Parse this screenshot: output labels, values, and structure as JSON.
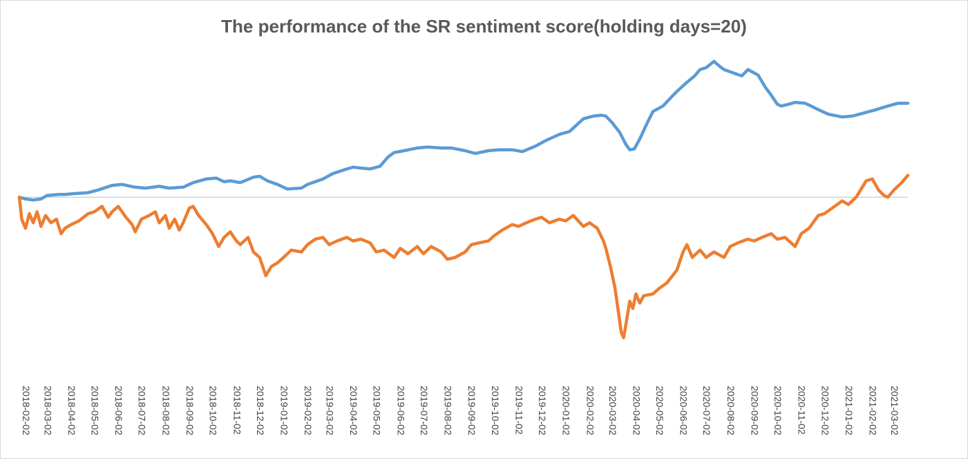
{
  "chart_data": {
    "type": "line",
    "title": "The performance of the SR sentiment score(holding days=20)",
    "xlabel": "",
    "ylabel": "",
    "x_tick_labels": [
      "2018-02-02",
      "2018-03-02",
      "2018-04-02",
      "2018-05-02",
      "2018-06-02",
      "2018-07-02",
      "2018-08-02",
      "2018-09-02",
      "2018-10-02",
      "2018-11-02",
      "2018-12-02",
      "2019-01-02",
      "2019-02-02",
      "2019-03-02",
      "2019-04-02",
      "2019-05-02",
      "2019-06-02",
      "2019-07-02",
      "2019-08-02",
      "2019-09-02",
      "2019-10-02",
      "2019-11-02",
      "2019-12-02",
      "2020-01-02",
      "2020-02-02",
      "2020-03-02",
      "2020-04-02",
      "2020-05-02",
      "2020-06-02",
      "2020-07-02",
      "2020-08-02",
      "2020-09-02",
      "2020-10-02",
      "2020-11-02",
      "2020-12-02",
      "2021-01-02",
      "2021-02-02",
      "2021-03-02"
    ],
    "x_range": [
      "2018-02-02",
      "2021-03-28"
    ],
    "ylim": [
      -0.95,
      0.85
    ],
    "grid": false,
    "legend": "none",
    "baseline": 0,
    "series": [
      {
        "color": "#5b9bd5",
        "points": [
          [
            "2018-02-02",
            0.0
          ],
          [
            "2018-02-10",
            -0.01
          ],
          [
            "2018-02-20",
            -0.015
          ],
          [
            "2018-03-02",
            -0.01
          ],
          [
            "2018-03-10",
            0.01
          ],
          [
            "2018-03-25",
            0.015
          ],
          [
            "2018-04-02",
            0.015
          ],
          [
            "2018-04-15",
            0.02
          ],
          [
            "2018-05-02",
            0.025
          ],
          [
            "2018-05-15",
            0.04
          ],
          [
            "2018-06-02",
            0.065
          ],
          [
            "2018-06-15",
            0.07
          ],
          [
            "2018-07-02",
            0.055
          ],
          [
            "2018-07-15",
            0.05
          ],
          [
            "2018-08-02",
            0.06
          ],
          [
            "2018-08-15",
            0.05
          ],
          [
            "2018-09-02",
            0.055
          ],
          [
            "2018-09-15",
            0.08
          ],
          [
            "2018-10-02",
            0.1
          ],
          [
            "2018-10-15",
            0.105
          ],
          [
            "2018-10-25",
            0.085
          ],
          [
            "2018-11-02",
            0.09
          ],
          [
            "2018-11-15",
            0.08
          ],
          [
            "2018-12-02",
            0.11
          ],
          [
            "2018-12-10",
            0.115
          ],
          [
            "2018-12-20",
            0.09
          ],
          [
            "2019-01-02",
            0.07
          ],
          [
            "2019-01-15",
            0.045
          ],
          [
            "2019-02-02",
            0.05
          ],
          [
            "2019-02-10",
            0.07
          ],
          [
            "2019-03-02",
            0.1
          ],
          [
            "2019-03-15",
            0.13
          ],
          [
            "2019-04-02",
            0.155
          ],
          [
            "2019-04-10",
            0.165
          ],
          [
            "2019-04-20",
            0.16
          ],
          [
            "2019-05-02",
            0.155
          ],
          [
            "2019-05-15",
            0.17
          ],
          [
            "2019-05-25",
            0.22
          ],
          [
            "2019-06-02",
            0.245
          ],
          [
            "2019-06-15",
            0.255
          ],
          [
            "2019-07-02",
            0.27
          ],
          [
            "2019-07-15",
            0.275
          ],
          [
            "2019-08-02",
            0.27
          ],
          [
            "2019-08-15",
            0.27
          ],
          [
            "2019-09-02",
            0.255
          ],
          [
            "2019-09-15",
            0.24
          ],
          [
            "2019-10-02",
            0.255
          ],
          [
            "2019-10-15",
            0.26
          ],
          [
            "2019-11-02",
            0.26
          ],
          [
            "2019-11-15",
            0.25
          ],
          [
            "2019-12-02",
            0.28
          ],
          [
            "2019-12-15",
            0.31
          ],
          [
            "2020-01-02",
            0.345
          ],
          [
            "2020-01-15",
            0.36
          ],
          [
            "2020-02-02",
            0.43
          ],
          [
            "2020-02-15",
            0.445
          ],
          [
            "2020-02-25",
            0.45
          ],
          [
            "2020-03-02",
            0.445
          ],
          [
            "2020-03-10",
            0.41
          ],
          [
            "2020-03-20",
            0.355
          ],
          [
            "2020-03-28",
            0.29
          ],
          [
            "2020-04-02",
            0.26
          ],
          [
            "2020-04-08",
            0.265
          ],
          [
            "2020-04-15",
            0.32
          ],
          [
            "2020-04-25",
            0.41
          ],
          [
            "2020-05-02",
            0.47
          ],
          [
            "2020-05-15",
            0.5
          ],
          [
            "2020-05-25",
            0.545
          ],
          [
            "2020-06-02",
            0.58
          ],
          [
            "2020-06-15",
            0.63
          ],
          [
            "2020-06-25",
            0.665
          ],
          [
            "2020-07-02",
            0.7
          ],
          [
            "2020-07-10",
            0.71
          ],
          [
            "2020-07-20",
            0.745
          ],
          [
            "2020-07-28",
            0.715
          ],
          [
            "2020-08-02",
            0.7
          ],
          [
            "2020-08-15",
            0.68
          ],
          [
            "2020-08-25",
            0.665
          ],
          [
            "2020-09-02",
            0.7
          ],
          [
            "2020-09-15",
            0.67
          ],
          [
            "2020-09-25",
            0.6
          ],
          [
            "2020-10-02",
            0.56
          ],
          [
            "2020-10-10",
            0.51
          ],
          [
            "2020-10-15",
            0.5
          ],
          [
            "2020-10-25",
            0.51
          ],
          [
            "2020-11-02",
            0.52
          ],
          [
            "2020-11-15",
            0.515
          ],
          [
            "2020-11-25",
            0.495
          ],
          [
            "2020-12-02",
            0.48
          ],
          [
            "2020-12-15",
            0.455
          ],
          [
            "2021-01-02",
            0.44
          ],
          [
            "2021-01-15",
            0.445
          ],
          [
            "2021-02-02",
            0.465
          ],
          [
            "2021-02-15",
            0.48
          ],
          [
            "2021-03-02",
            0.5
          ],
          [
            "2021-03-15",
            0.515
          ],
          [
            "2021-03-28",
            0.515
          ]
        ]
      },
      {
        "color": "#ed7d31",
        "points": [
          [
            "2018-02-02",
            0.0
          ],
          [
            "2018-02-05",
            -0.12
          ],
          [
            "2018-02-10",
            -0.17
          ],
          [
            "2018-02-15",
            -0.09
          ],
          [
            "2018-02-20",
            -0.14
          ],
          [
            "2018-02-25",
            -0.08
          ],
          [
            "2018-03-02",
            -0.16
          ],
          [
            "2018-03-08",
            -0.1
          ],
          [
            "2018-03-15",
            -0.14
          ],
          [
            "2018-03-22",
            -0.12
          ],
          [
            "2018-03-28",
            -0.2
          ],
          [
            "2018-04-02",
            -0.17
          ],
          [
            "2018-04-10",
            -0.15
          ],
          [
            "2018-04-20",
            -0.13
          ],
          [
            "2018-05-02",
            -0.09
          ],
          [
            "2018-05-10",
            -0.08
          ],
          [
            "2018-05-20",
            -0.05
          ],
          [
            "2018-05-28",
            -0.11
          ],
          [
            "2018-06-02",
            -0.08
          ],
          [
            "2018-06-10",
            -0.05
          ],
          [
            "2018-06-20",
            -0.11
          ],
          [
            "2018-06-28",
            -0.15
          ],
          [
            "2018-07-02",
            -0.19
          ],
          [
            "2018-07-10",
            -0.12
          ],
          [
            "2018-07-20",
            -0.1
          ],
          [
            "2018-07-28",
            -0.08
          ],
          [
            "2018-08-02",
            -0.14
          ],
          [
            "2018-08-10",
            -0.1
          ],
          [
            "2018-08-15",
            -0.17
          ],
          [
            "2018-08-22",
            -0.12
          ],
          [
            "2018-08-28",
            -0.18
          ],
          [
            "2018-09-02",
            -0.14
          ],
          [
            "2018-09-10",
            -0.06
          ],
          [
            "2018-09-15",
            -0.05
          ],
          [
            "2018-09-22",
            -0.1
          ],
          [
            "2018-10-02",
            -0.15
          ],
          [
            "2018-10-10",
            -0.2
          ],
          [
            "2018-10-18",
            -0.27
          ],
          [
            "2018-10-25",
            -0.22
          ],
          [
            "2018-11-02",
            -0.19
          ],
          [
            "2018-11-10",
            -0.24
          ],
          [
            "2018-11-15",
            -0.26
          ],
          [
            "2018-11-25",
            -0.22
          ],
          [
            "2018-12-02",
            -0.3
          ],
          [
            "2018-12-10",
            -0.33
          ],
          [
            "2018-12-18",
            -0.43
          ],
          [
            "2018-12-25",
            -0.38
          ],
          [
            "2019-01-02",
            -0.36
          ],
          [
            "2019-01-10",
            -0.33
          ],
          [
            "2019-01-20",
            -0.29
          ],
          [
            "2019-02-02",
            -0.3
          ],
          [
            "2019-02-10",
            -0.26
          ],
          [
            "2019-02-20",
            -0.23
          ],
          [
            "2019-03-02",
            -0.22
          ],
          [
            "2019-03-10",
            -0.26
          ],
          [
            "2019-03-20",
            -0.24
          ],
          [
            "2019-04-02",
            -0.22
          ],
          [
            "2019-04-10",
            -0.24
          ],
          [
            "2019-04-20",
            -0.23
          ],
          [
            "2019-05-02",
            -0.25
          ],
          [
            "2019-05-10",
            -0.3
          ],
          [
            "2019-05-20",
            -0.29
          ],
          [
            "2019-06-02",
            -0.33
          ],
          [
            "2019-06-10",
            -0.28
          ],
          [
            "2019-06-20",
            -0.31
          ],
          [
            "2019-07-02",
            -0.27
          ],
          [
            "2019-07-10",
            -0.31
          ],
          [
            "2019-07-20",
            -0.27
          ],
          [
            "2019-08-02",
            -0.3
          ],
          [
            "2019-08-10",
            -0.34
          ],
          [
            "2019-08-20",
            -0.33
          ],
          [
            "2019-09-02",
            -0.3
          ],
          [
            "2019-09-10",
            -0.26
          ],
          [
            "2019-09-20",
            -0.25
          ],
          [
            "2019-10-02",
            -0.24
          ],
          [
            "2019-10-10",
            -0.21
          ],
          [
            "2019-10-20",
            -0.18
          ],
          [
            "2019-11-02",
            -0.15
          ],
          [
            "2019-11-10",
            -0.16
          ],
          [
            "2019-11-20",
            -0.14
          ],
          [
            "2019-12-02",
            -0.12
          ],
          [
            "2019-12-10",
            -0.11
          ],
          [
            "2019-12-20",
            -0.14
          ],
          [
            "2020-01-02",
            -0.12
          ],
          [
            "2020-01-10",
            -0.13
          ],
          [
            "2020-01-20",
            -0.1
          ],
          [
            "2020-02-02",
            -0.16
          ],
          [
            "2020-02-10",
            -0.14
          ],
          [
            "2020-02-20",
            -0.17
          ],
          [
            "2020-02-28",
            -0.24
          ],
          [
            "2020-03-02",
            -0.28
          ],
          [
            "2020-03-08",
            -0.38
          ],
          [
            "2020-03-14",
            -0.5
          ],
          [
            "2020-03-18",
            -0.62
          ],
          [
            "2020-03-22",
            -0.74
          ],
          [
            "2020-03-25",
            -0.77
          ],
          [
            "2020-03-28",
            -0.7
          ],
          [
            "2020-04-02",
            -0.57
          ],
          [
            "2020-04-06",
            -0.61
          ],
          [
            "2020-04-10",
            -0.53
          ],
          [
            "2020-04-15",
            -0.58
          ],
          [
            "2020-04-20",
            -0.54
          ],
          [
            "2020-05-02",
            -0.53
          ],
          [
            "2020-05-10",
            -0.5
          ],
          [
            "2020-05-20",
            -0.47
          ],
          [
            "2020-06-02",
            -0.4
          ],
          [
            "2020-06-10",
            -0.3
          ],
          [
            "2020-06-15",
            -0.26
          ],
          [
            "2020-06-22",
            -0.33
          ],
          [
            "2020-07-02",
            -0.29
          ],
          [
            "2020-07-10",
            -0.33
          ],
          [
            "2020-07-20",
            -0.3
          ],
          [
            "2020-08-02",
            -0.33
          ],
          [
            "2020-08-10",
            -0.27
          ],
          [
            "2020-08-20",
            -0.25
          ],
          [
            "2020-09-02",
            -0.23
          ],
          [
            "2020-09-10",
            -0.24
          ],
          [
            "2020-09-20",
            -0.22
          ],
          [
            "2020-10-02",
            -0.2
          ],
          [
            "2020-10-10",
            -0.23
          ],
          [
            "2020-10-20",
            -0.22
          ],
          [
            "2020-11-02",
            -0.27
          ],
          [
            "2020-11-10",
            -0.2
          ],
          [
            "2020-11-20",
            -0.17
          ],
          [
            "2020-12-02",
            -0.1
          ],
          [
            "2020-12-10",
            -0.09
          ],
          [
            "2020-12-20",
            -0.06
          ],
          [
            "2021-01-02",
            -0.02
          ],
          [
            "2021-01-10",
            -0.04
          ],
          [
            "2021-01-20",
            0.0
          ],
          [
            "2021-02-02",
            0.09
          ],
          [
            "2021-02-10",
            0.1
          ],
          [
            "2021-02-18",
            0.04
          ],
          [
            "2021-02-25",
            0.01
          ],
          [
            "2021-03-02",
            0.0
          ],
          [
            "2021-03-10",
            0.04
          ],
          [
            "2021-03-20",
            0.08
          ],
          [
            "2021-03-28",
            0.12
          ]
        ]
      }
    ]
  }
}
